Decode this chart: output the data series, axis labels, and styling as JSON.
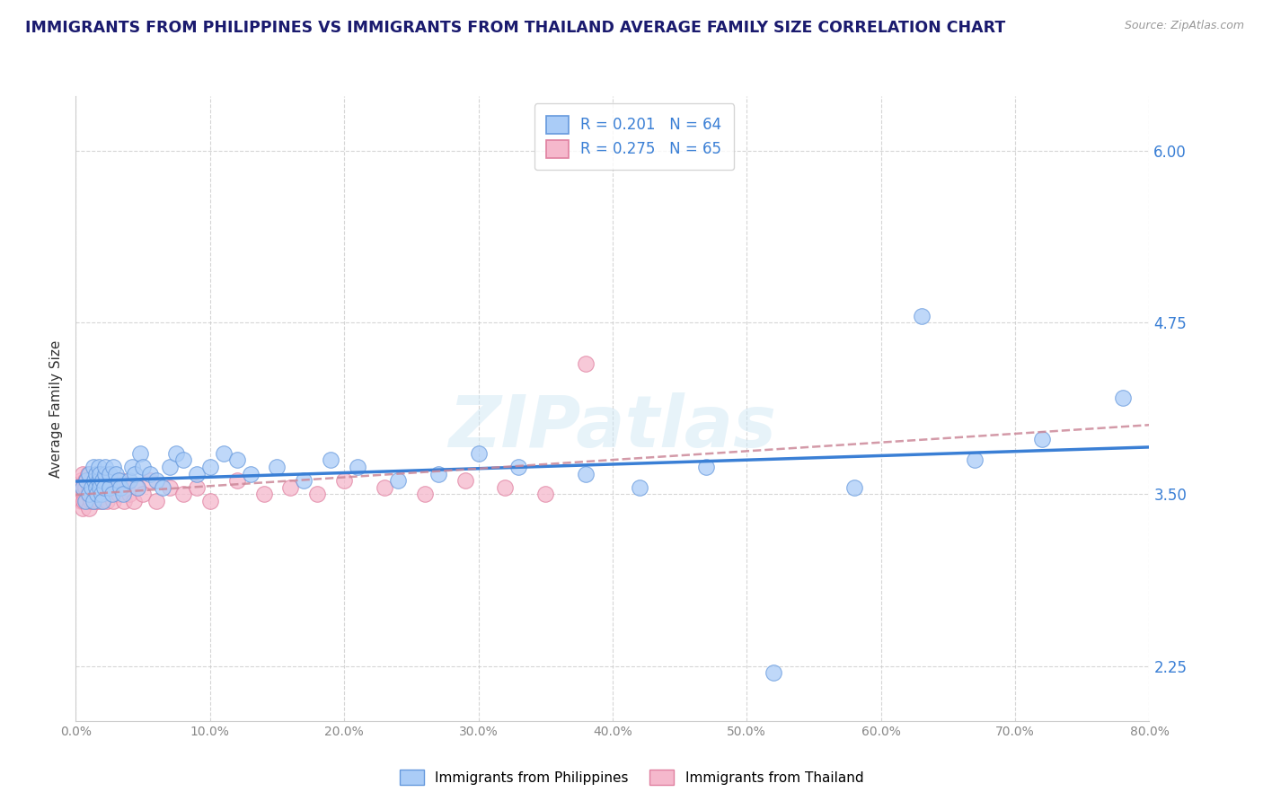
{
  "title": "IMMIGRANTS FROM PHILIPPINES VS IMMIGRANTS FROM THAILAND AVERAGE FAMILY SIZE CORRELATION CHART",
  "source": "Source: ZipAtlas.com",
  "ylabel": "Average Family Size",
  "yticks": [
    2.25,
    3.5,
    4.75,
    6.0
  ],
  "xlim": [
    0.0,
    0.8
  ],
  "ylim": [
    1.85,
    6.4
  ],
  "r_philippines": 0.201,
  "n_philippines": 64,
  "r_thailand": 0.275,
  "n_thailand": 65,
  "color_philippines": "#aaccf7",
  "color_thailand": "#f5b8cc",
  "edge_philippines": "#6699dd",
  "edge_thailand": "#e080a0",
  "trendline_blue": "#3a7fd5",
  "trendline_pink": "#cc8899",
  "watermark": "ZIPatlas",
  "philippines_x": [
    0.005,
    0.007,
    0.008,
    0.01,
    0.01,
    0.012,
    0.013,
    0.013,
    0.014,
    0.015,
    0.015,
    0.016,
    0.017,
    0.017,
    0.018,
    0.018,
    0.019,
    0.02,
    0.02,
    0.021,
    0.022,
    0.022,
    0.025,
    0.025,
    0.027,
    0.028,
    0.03,
    0.032,
    0.033,
    0.035,
    0.04,
    0.042,
    0.044,
    0.046,
    0.048,
    0.05,
    0.055,
    0.06,
    0.065,
    0.07,
    0.075,
    0.08,
    0.09,
    0.1,
    0.11,
    0.12,
    0.13,
    0.15,
    0.17,
    0.19,
    0.21,
    0.24,
    0.27,
    0.3,
    0.33,
    0.38,
    0.42,
    0.47,
    0.52,
    0.58,
    0.63,
    0.67,
    0.72,
    0.78
  ],
  "philippines_y": [
    3.55,
    3.45,
    3.6,
    3.5,
    3.65,
    3.55,
    3.7,
    3.45,
    3.6,
    3.55,
    3.65,
    3.5,
    3.6,
    3.7,
    3.55,
    3.65,
    3.5,
    3.45,
    3.6,
    3.55,
    3.65,
    3.7,
    3.55,
    3.65,
    3.5,
    3.7,
    3.65,
    3.6,
    3.55,
    3.5,
    3.6,
    3.7,
    3.65,
    3.55,
    3.8,
    3.7,
    3.65,
    3.6,
    3.55,
    3.7,
    3.8,
    3.75,
    3.65,
    3.7,
    3.8,
    3.75,
    3.65,
    3.7,
    3.6,
    3.75,
    3.7,
    3.6,
    3.65,
    3.8,
    3.7,
    3.65,
    3.55,
    3.7,
    2.2,
    3.55,
    4.8,
    3.75,
    3.9,
    4.2
  ],
  "thailand_x": [
    0.002,
    0.003,
    0.004,
    0.004,
    0.005,
    0.005,
    0.005,
    0.006,
    0.006,
    0.007,
    0.007,
    0.008,
    0.008,
    0.009,
    0.009,
    0.01,
    0.01,
    0.01,
    0.011,
    0.011,
    0.012,
    0.012,
    0.013,
    0.014,
    0.014,
    0.015,
    0.015,
    0.016,
    0.017,
    0.017,
    0.018,
    0.019,
    0.02,
    0.021,
    0.022,
    0.023,
    0.025,
    0.026,
    0.028,
    0.03,
    0.032,
    0.034,
    0.036,
    0.038,
    0.04,
    0.043,
    0.046,
    0.05,
    0.055,
    0.06,
    0.07,
    0.08,
    0.09,
    0.1,
    0.12,
    0.14,
    0.16,
    0.18,
    0.2,
    0.23,
    0.26,
    0.29,
    0.32,
    0.35,
    0.38
  ],
  "thailand_y": [
    3.5,
    3.55,
    3.45,
    3.6,
    3.4,
    3.55,
    3.65,
    3.5,
    3.45,
    3.6,
    3.55,
    3.45,
    3.6,
    3.5,
    3.65,
    3.4,
    3.55,
    3.5,
    3.45,
    3.6,
    3.5,
    3.55,
    3.45,
    3.55,
    3.5,
    3.45,
    3.6,
    3.5,
    3.45,
    3.55,
    3.5,
    3.6,
    3.45,
    3.55,
    3.5,
    3.45,
    3.55,
    3.5,
    3.45,
    3.55,
    3.5,
    3.6,
    3.45,
    3.55,
    3.5,
    3.45,
    3.55,
    3.5,
    3.6,
    3.45,
    3.55,
    3.5,
    3.55,
    3.45,
    3.6,
    3.5,
    3.55,
    3.5,
    3.6,
    3.55,
    3.5,
    3.6,
    3.55,
    3.5,
    4.45
  ],
  "background_color": "#ffffff",
  "grid_color": "#cccccc",
  "title_color": "#1a1a6e",
  "text_color": "#333333",
  "blue_tick_color": "#3a7fd5"
}
